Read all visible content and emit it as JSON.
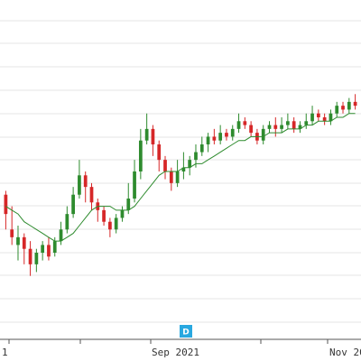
{
  "chart_data": {
    "type": "candlestick",
    "x_tick_labels": [
      "1",
      "Sep 2021",
      "Nov 20"
    ],
    "event_badge": "D",
    "colors": {
      "up": "#2e8b2e",
      "down": "#d62728",
      "moving_average": "#2e8b2e",
      "badge": "#29a8e0",
      "grid": "#e6e6e6"
    },
    "grid": true,
    "y_axis_labels_visible": false,
    "series": [
      {
        "kind": "ohlc",
        "values": [
          [
            49,
            44,
            50,
            40
          ],
          [
            40,
            38,
            46,
            36
          ],
          [
            36,
            38,
            41,
            32
          ],
          [
            38,
            35,
            39,
            31
          ],
          [
            35,
            31,
            37,
            28
          ],
          [
            31,
            34,
            35,
            29
          ],
          [
            34,
            36,
            37,
            32
          ],
          [
            36,
            33,
            38,
            32
          ],
          [
            34,
            37,
            38,
            33
          ],
          [
            37,
            40,
            42,
            36
          ],
          [
            40,
            44,
            46,
            39
          ],
          [
            44,
            49,
            51,
            43
          ],
          [
            49,
            54,
            58,
            48
          ],
          [
            54,
            51,
            55,
            47
          ],
          [
            51,
            47,
            52,
            45
          ],
          [
            47,
            45,
            48,
            42
          ],
          [
            45,
            42,
            46,
            41
          ],
          [
            42,
            40,
            43,
            38
          ],
          [
            40,
            43,
            44,
            39
          ],
          [
            43,
            45,
            46,
            42
          ],
          [
            45,
            48,
            52,
            44
          ],
          [
            48,
            55,
            58,
            47
          ],
          [
            55,
            63,
            66,
            53
          ],
          [
            63,
            66,
            70,
            62
          ],
          [
            66,
            62,
            67,
            59
          ],
          [
            62,
            58,
            63,
            55
          ],
          [
            58,
            55,
            59,
            53
          ],
          [
            55,
            52,
            56,
            50
          ],
          [
            52,
            55,
            58,
            51
          ],
          [
            55,
            56,
            60,
            53
          ],
          [
            56,
            58,
            59,
            54
          ],
          [
            58,
            60,
            62,
            56
          ],
          [
            60,
            62,
            64,
            59
          ],
          [
            62,
            64,
            65,
            60
          ],
          [
            64,
            63,
            66,
            62
          ],
          [
            63,
            65,
            67,
            62
          ],
          [
            65,
            64,
            66,
            63
          ],
          [
            64,
            66,
            67,
            63
          ],
          [
            66,
            68,
            70,
            65
          ],
          [
            68,
            67,
            69,
            66
          ],
          [
            67,
            65,
            68,
            64
          ],
          [
            65,
            63,
            66,
            62
          ],
          [
            63,
            66,
            67,
            62
          ],
          [
            66,
            67,
            68,
            65
          ],
          [
            67,
            66,
            69,
            64
          ],
          [
            66,
            67,
            69,
            65
          ],
          [
            67,
            68,
            70,
            66
          ],
          [
            68,
            66,
            69,
            65
          ],
          [
            66,
            67,
            68,
            65
          ],
          [
            67,
            68,
            70,
            66
          ],
          [
            68,
            70,
            72,
            67
          ],
          [
            70,
            69,
            71,
            68
          ],
          [
            69,
            68,
            70,
            67
          ],
          [
            68,
            70,
            71,
            67
          ],
          [
            70,
            72,
            73,
            69
          ],
          [
            72,
            71,
            73,
            70
          ],
          [
            71,
            73,
            74,
            70
          ],
          [
            73,
            72,
            75,
            71
          ]
        ]
      },
      {
        "kind": "moving_average",
        "values": [
          46,
          45,
          44,
          42,
          41,
          40,
          39,
          38,
          37,
          37,
          38,
          39,
          41,
          43,
          45,
          46,
          46,
          46,
          45,
          45,
          45,
          46,
          48,
          50,
          52,
          54,
          55,
          55,
          55,
          56,
          56,
          57,
          57,
          58,
          59,
          60,
          61,
          62,
          63,
          63,
          64,
          64,
          64,
          65,
          65,
          65,
          66,
          66,
          66,
          67,
          67,
          68,
          68,
          68,
          69,
          69,
          70,
          70
        ]
      }
    ]
  }
}
